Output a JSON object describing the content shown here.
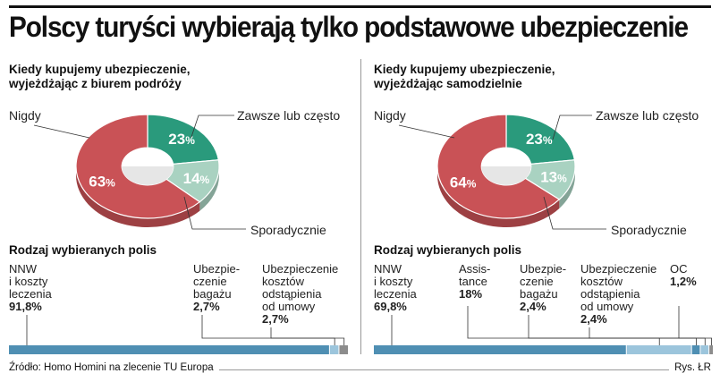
{
  "title": "Polscy turyści wybierają tylko podstawowe ubezpieczenie",
  "footer": {
    "source": "Źródło: Homo Homini na zlecenie TU Europa",
    "credit": "Rys. ŁR"
  },
  "colors": {
    "red": "#c95256",
    "green": "#2a9a7c",
    "lightgreen": "#a9d2c1",
    "blue": "#4f8fb3",
    "lightblue": "#9cc5dc",
    "gray": "#8c8c8c"
  },
  "panels": [
    {
      "subtitle_line1": "Kiedy kupujemy ubezpieczenie,",
      "subtitle_line2": "wyjeżdżając z biurem podróży",
      "donut_labels": {
        "never": "Nigdy",
        "always": "Zawsze lub często",
        "sporadic": "Sporadycznie"
      },
      "donut_values": {
        "always": "23",
        "sporadic": "14",
        "never": "63"
      },
      "policies_title": "Rodzaj wybieranych polis",
      "policies": [
        {
          "lines": [
            "NNW",
            "i koszty",
            "leczenia"
          ],
          "value": "91,8%"
        },
        {
          "lines": [
            "Ubezpie-",
            "czenie",
            "bagażu"
          ],
          "value": "2,7%"
        },
        {
          "lines": [
            "Ubezpieczenie",
            "kosztów",
            "odstąpienia",
            "od umowy"
          ],
          "value": "2,7%"
        }
      ]
    },
    {
      "subtitle_line1": "Kiedy kupujemy ubezpieczenie,",
      "subtitle_line2": "wyjeżdżając samodzielnie",
      "donut_labels": {
        "never": "Nigdy",
        "always": "Zawsze lub często",
        "sporadic": "Sporadycznie"
      },
      "donut_values": {
        "always": "23",
        "sporadic": "13",
        "never": "64"
      },
      "policies_title": "Rodzaj wybieranych polis",
      "policies": [
        {
          "lines": [
            "NNW",
            "i koszty",
            "leczenia"
          ],
          "value": "69,8%"
        },
        {
          "lines": [
            "Assis-",
            "tance"
          ],
          "value": "18%"
        },
        {
          "lines": [
            "Ubezpie-",
            "czenie",
            "bagażu"
          ],
          "value": "2,4%"
        },
        {
          "lines": [
            "Ubezpieczenie",
            "kosztów",
            "odstąpienia",
            "od umowy"
          ],
          "value": "2,4%"
        },
        {
          "lines": [
            "OC"
          ],
          "value": "1,2%"
        }
      ]
    }
  ],
  "chart_data": [
    {
      "type": "pie",
      "title": "Kiedy kupujemy ubezpieczenie, wyjeżdżając z biurem podróży",
      "categories": [
        "Zawsze lub często",
        "Sporadycznie",
        "Nigdy"
      ],
      "values": [
        23,
        14,
        63
      ],
      "unit": "%"
    },
    {
      "type": "bar",
      "orientation": "horizontal-stacked",
      "title": "Rodzaj wybieranych polis",
      "categories": [
        "NNW i koszty leczenia",
        "Ubezpieczenie bagażu",
        "Ubezpieczenie kosztów odstąpienia od umowy"
      ],
      "values": [
        91.8,
        2.7,
        2.7
      ],
      "unit": "%"
    },
    {
      "type": "pie",
      "title": "Kiedy kupujemy ubezpieczenie, wyjeżdżając samodzielnie",
      "categories": [
        "Zawsze lub często",
        "Sporadycznie",
        "Nigdy"
      ],
      "values": [
        23,
        13,
        64
      ],
      "unit": "%"
    },
    {
      "type": "bar",
      "orientation": "horizontal-stacked",
      "title": "Rodzaj wybieranych polis",
      "categories": [
        "NNW i koszty leczenia",
        "Assistance",
        "Ubezpieczenie bagażu",
        "Ubezpieczenie kosztów odstąpienia od umowy",
        "OC"
      ],
      "values": [
        69.8,
        18,
        2.4,
        2.4,
        1.2
      ],
      "unit": "%"
    }
  ]
}
